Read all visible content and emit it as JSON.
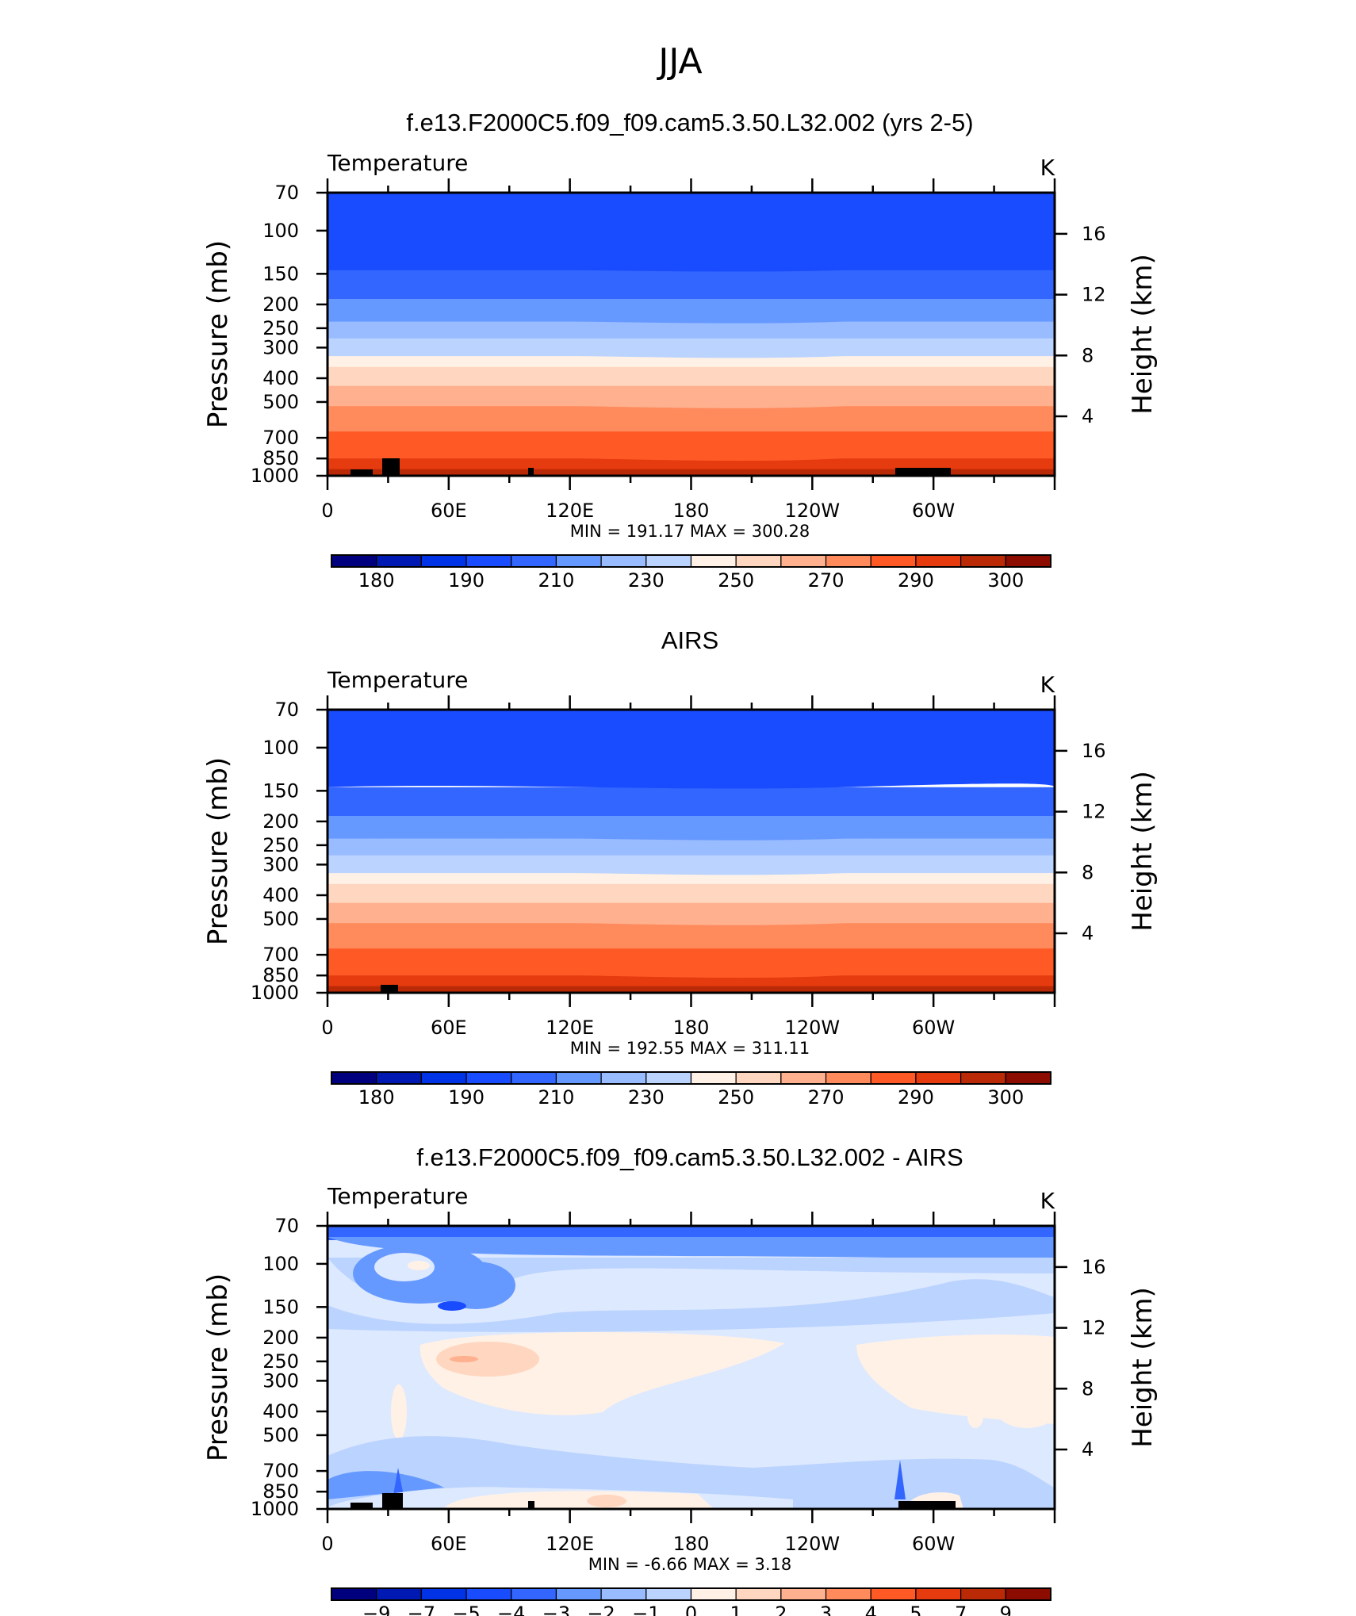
{
  "figure": {
    "title": "JJA"
  },
  "colors": {
    "temperature": [
      "#00007f",
      "#0019b2",
      "#0033e5",
      "#1a4cff",
      "#3366ff",
      "#6699ff",
      "#99bbff",
      "#bbd3ff",
      "#dde9ff",
      "#fff1e6",
      "#ffd6bf",
      "#ffb08f",
      "#ff8a5c",
      "#ff5a26",
      "#e63a0f",
      "#bb2a06",
      "#8c0c00"
    ],
    "difference": [
      "#00007f",
      "#0019b2",
      "#0033e5",
      "#1a4cff",
      "#3366ff",
      "#6699ff",
      "#99bbff",
      "#bbd3ff",
      "#dde9ff",
      "#fff1e6",
      "#ffd6bf",
      "#ffb08f",
      "#ff8a5c",
      "#ff5a26",
      "#e63a0f",
      "#bb2a06",
      "#8c0c00"
    ]
  },
  "chart_data": [
    {
      "type": "heatmap",
      "title": "f.e13.F2000C5.f09_f09.cam5.3.50.L32.002 (yrs 2-5)",
      "left_label": "Temperature",
      "units": "K",
      "xlabel": "",
      "ylabel": "Pressure (mb)",
      "y2label": "Height (km)",
      "x_ticks": [
        "0",
        "60E",
        "120E",
        "180",
        "120W",
        "60W"
      ],
      "y_ticks": [
        "70",
        "100",
        "150",
        "200",
        "250",
        "300",
        "400",
        "500",
        "700",
        "850",
        "1000"
      ],
      "y2_ticks": [
        "16",
        "12",
        "8",
        "4"
      ],
      "stats": {
        "min_label": "MIN",
        "min": "191.17",
        "max_label": "MAX",
        "max": "300.28"
      },
      "colorbar_labels": [
        "180",
        "190",
        "210",
        "230",
        "250",
        "270",
        "290",
        "300"
      ],
      "colorbar_levels": [
        "175",
        "180",
        "185",
        "190",
        "200",
        "210",
        "220",
        "230",
        "240",
        "250",
        "260",
        "270",
        "280",
        "290",
        "295",
        "300"
      ]
    },
    {
      "type": "heatmap",
      "title": "AIRS",
      "left_label": "Temperature",
      "units": "K",
      "xlabel": "",
      "ylabel": "Pressure (mb)",
      "y2label": "Height (km)",
      "x_ticks": [
        "0",
        "60E",
        "120E",
        "180",
        "120W",
        "60W"
      ],
      "y_ticks": [
        "70",
        "100",
        "150",
        "200",
        "250",
        "300",
        "400",
        "500",
        "700",
        "850",
        "1000"
      ],
      "y2_ticks": [
        "16",
        "12",
        "8",
        "4"
      ],
      "stats": {
        "min_label": "MIN",
        "min": "192.55",
        "max_label": "MAX",
        "max": "311.11"
      },
      "colorbar_labels": [
        "180",
        "190",
        "210",
        "230",
        "250",
        "270",
        "290",
        "300"
      ],
      "colorbar_levels": [
        "175",
        "180",
        "185",
        "190",
        "200",
        "210",
        "220",
        "230",
        "240",
        "250",
        "260",
        "270",
        "280",
        "290",
        "295",
        "300"
      ]
    },
    {
      "type": "heatmap",
      "title": "f.e13.F2000C5.f09_f09.cam5.3.50.L32.002 - AIRS",
      "left_label": "Temperature",
      "units": "K",
      "xlabel": "",
      "ylabel": "Pressure (mb)",
      "y2label": "Height (km)",
      "x_ticks": [
        "0",
        "60E",
        "120E",
        "180",
        "120W",
        "60W"
      ],
      "y_ticks": [
        "70",
        "100",
        "150",
        "200",
        "250",
        "300",
        "400",
        "500",
        "700",
        "850",
        "1000"
      ],
      "y2_ticks": [
        "16",
        "12",
        "8",
        "4"
      ],
      "stats": {
        "min_label": "MIN",
        "min": "-6.66",
        "max_label": "MAX",
        "max": "3.18"
      },
      "colorbar_labels": [
        "−9",
        "−7",
        "−5",
        "−4",
        "−3",
        "−2",
        "−1",
        "0",
        "1",
        "2",
        "3",
        "4",
        "5",
        "7",
        "9"
      ],
      "colorbar_levels": [
        "-9",
        "-7",
        "-5",
        "-4",
        "-3",
        "-2",
        "-1",
        "0",
        "1",
        "2",
        "3",
        "4",
        "5",
        "7",
        "9"
      ]
    }
  ]
}
